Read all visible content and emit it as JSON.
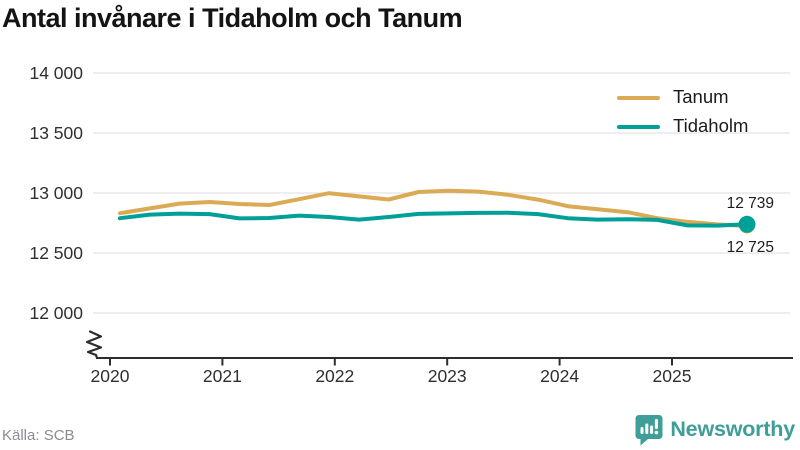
{
  "title": "Antal invånare i Tidaholm och Tanum",
  "source": "Källa: SCB",
  "branding": {
    "logo_text": "Newsworthy",
    "logo_color": "#3f9e97",
    "icon": "bar-chart-speech-bubble-icon"
  },
  "chart_data": {
    "type": "line",
    "title": "Antal invånare i Tidaholm och Tanum",
    "x_unit": "quarter",
    "x": [
      "2020 K1",
      "2020 K2",
      "2020 K3",
      "2020 K4",
      "2021 K1",
      "2021 K2",
      "2021 K3",
      "2021 K4",
      "2022 K1",
      "2022 K2",
      "2022 K3",
      "2022 K4",
      "2023 K1",
      "2023 K2",
      "2023 K3",
      "2023 K4",
      "2024 K1",
      "2024 K2",
      "2024 K3",
      "2024 K4",
      "2025 K1",
      "2025 K2"
    ],
    "series": [
      {
        "name": "Tanum",
        "color": "#dbaa55",
        "end_label": "12 725",
        "values": [
          12832,
          12872,
          12912,
          12925,
          12908,
          12900,
          12948,
          12998,
          12972,
          12946,
          13008,
          13018,
          13012,
          12985,
          12945,
          12890,
          12865,
          12840,
          12790,
          12760,
          12738,
          12725
        ]
      },
      {
        "name": "Tidaholm",
        "color": "#00a099",
        "end_label": "12 739",
        "values": [
          12790,
          12820,
          12828,
          12824,
          12788,
          12792,
          12812,
          12800,
          12778,
          12800,
          12826,
          12830,
          12834,
          12836,
          12824,
          12790,
          12778,
          12782,
          12776,
          12730,
          12728,
          12739
        ]
      }
    ],
    "y_ticks": [
      {
        "value": 12000,
        "label": "12 000"
      },
      {
        "value": 12500,
        "label": "12 500"
      },
      {
        "value": 13000,
        "label": "13 000"
      },
      {
        "value": 13500,
        "label": "13 500"
      },
      {
        "value": 14000,
        "label": "14 000"
      }
    ],
    "x_ticks": [
      {
        "value": 2020,
        "label": "2020"
      },
      {
        "value": 2021,
        "label": "2021"
      },
      {
        "value": 2022,
        "label": "2022"
      },
      {
        "value": 2023,
        "label": "2023"
      },
      {
        "value": 2024,
        "label": "2024"
      },
      {
        "value": 2025,
        "label": "2025"
      }
    ],
    "ylim": [
      12000,
      14000
    ],
    "axis_break": true,
    "grid": "horizontal",
    "legend_position": "top-right"
  }
}
